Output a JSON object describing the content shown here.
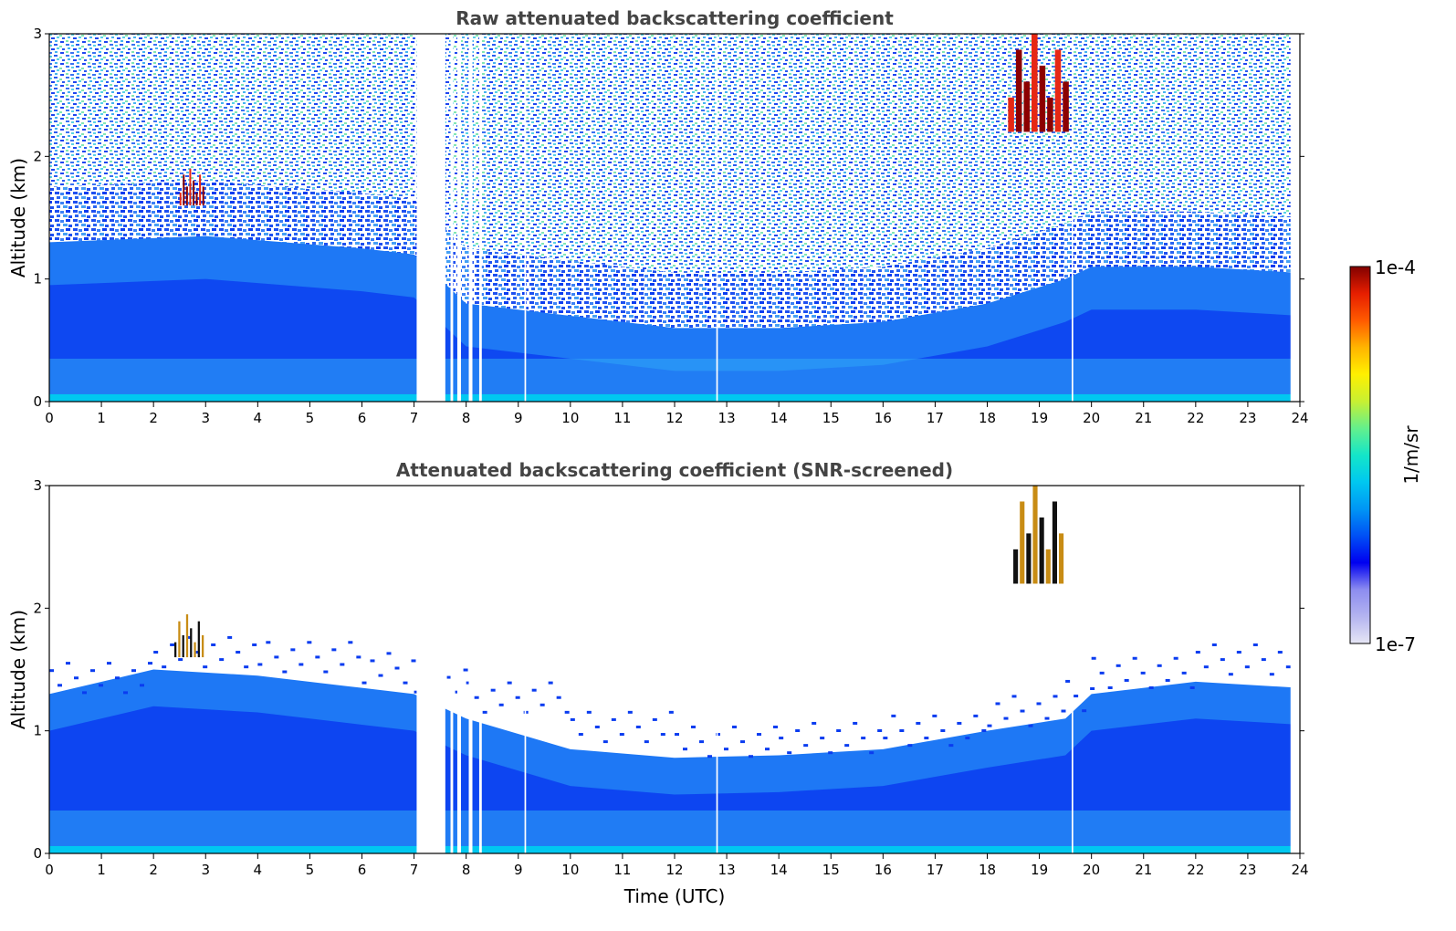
{
  "chart_data": [
    {
      "type": "heatmap",
      "title": "Raw attenuated backscattering coefficient",
      "xlabel": "",
      "ylabel": "Altitude (km)",
      "xlim": [
        0,
        24
      ],
      "ylim": [
        0,
        3
      ],
      "xticks": [
        0,
        1,
        2,
        3,
        4,
        5,
        6,
        7,
        8,
        9,
        10,
        11,
        12,
        13,
        14,
        15,
        16,
        17,
        18,
        19,
        20,
        21,
        22,
        23,
        24
      ],
      "yticks": [
        0,
        1,
        2,
        3
      ],
      "data_gaps_utc": [
        [
          7.05,
          7.6
        ],
        [
          7.7,
          7.75
        ],
        [
          7.83,
          7.9
        ],
        [
          8.05,
          8.12
        ],
        [
          8.25,
          8.3
        ],
        [
          9.12,
          9.15
        ],
        [
          12.8,
          12.83
        ],
        [
          19.62,
          19.65
        ],
        [
          23.82,
          24
        ]
      ],
      "aerosol_layer_top_km": [
        [
          0,
          1.3
        ],
        [
          3,
          1.35
        ],
        [
          6,
          1.25
        ],
        [
          7,
          1.2
        ],
        [
          8,
          0.8
        ],
        [
          10,
          0.7
        ],
        [
          12,
          0.6
        ],
        [
          14,
          0.6
        ],
        [
          16,
          0.65
        ],
        [
          18,
          0.8
        ],
        [
          19.5,
          1.0
        ],
        [
          20,
          1.1
        ],
        [
          22,
          1.1
        ],
        [
          24,
          1.05
        ]
      ],
      "cloud_features": [
        {
          "time_utc": [
            2.5,
            3.0
          ],
          "altitude_km": [
            1.6,
            1.9
          ]
        },
        {
          "time_utc": [
            18.4,
            19.6
          ],
          "altitude_km": [
            2.2,
            3.0
          ]
        }
      ]
    },
    {
      "type": "heatmap",
      "title": "Attenuated backscattering coefficient (SNR-screened)",
      "xlabel": "Time (UTC)",
      "ylabel": "Altitude (km)",
      "xlim": [
        0,
        24
      ],
      "ylim": [
        0,
        3
      ],
      "xticks": [
        0,
        1,
        2,
        3,
        4,
        5,
        6,
        7,
        8,
        9,
        10,
        11,
        12,
        13,
        14,
        15,
        16,
        17,
        18,
        19,
        20,
        21,
        22,
        23,
        24
      ],
      "yticks": [
        0,
        1,
        2,
        3
      ],
      "screened_layer_top_km": [
        [
          0,
          1.3
        ],
        [
          2,
          1.5
        ],
        [
          4,
          1.45
        ],
        [
          6,
          1.35
        ],
        [
          7,
          1.3
        ],
        [
          8,
          1.1
        ],
        [
          10,
          0.85
        ],
        [
          12,
          0.78
        ],
        [
          14,
          0.8
        ],
        [
          16,
          0.85
        ],
        [
          18,
          1.0
        ],
        [
          19.5,
          1.1
        ],
        [
          20,
          1.3
        ],
        [
          22,
          1.4
        ],
        [
          24,
          1.35
        ]
      ],
      "cloud_features": [
        {
          "time_utc": [
            2.4,
            3.0
          ],
          "altitude_km": [
            1.6,
            1.95
          ]
        },
        {
          "time_utc": [
            18.5,
            19.5
          ],
          "altitude_km": [
            2.2,
            3.0
          ]
        }
      ]
    }
  ],
  "colorbar": {
    "max_label": "1e-4",
    "min_label": "1e-7",
    "unit_label": "1/m/sr",
    "colors": [
      "#e6e6f5",
      "#b4b4f0",
      "#8c8cf0",
      "#0000f0",
      "#0050f5",
      "#0096f5",
      "#00c8f0",
      "#14e6c8",
      "#64f08c",
      "#c8f032",
      "#fff000",
      "#ffb400",
      "#ff5a00",
      "#e61e00",
      "#820000"
    ]
  },
  "colors": {
    "deep_blue": "#0a3cf0",
    "mid_blue": "#1e78f5",
    "light_blue": "#32aaf5",
    "surface_cyan": "#00c8f0"
  }
}
